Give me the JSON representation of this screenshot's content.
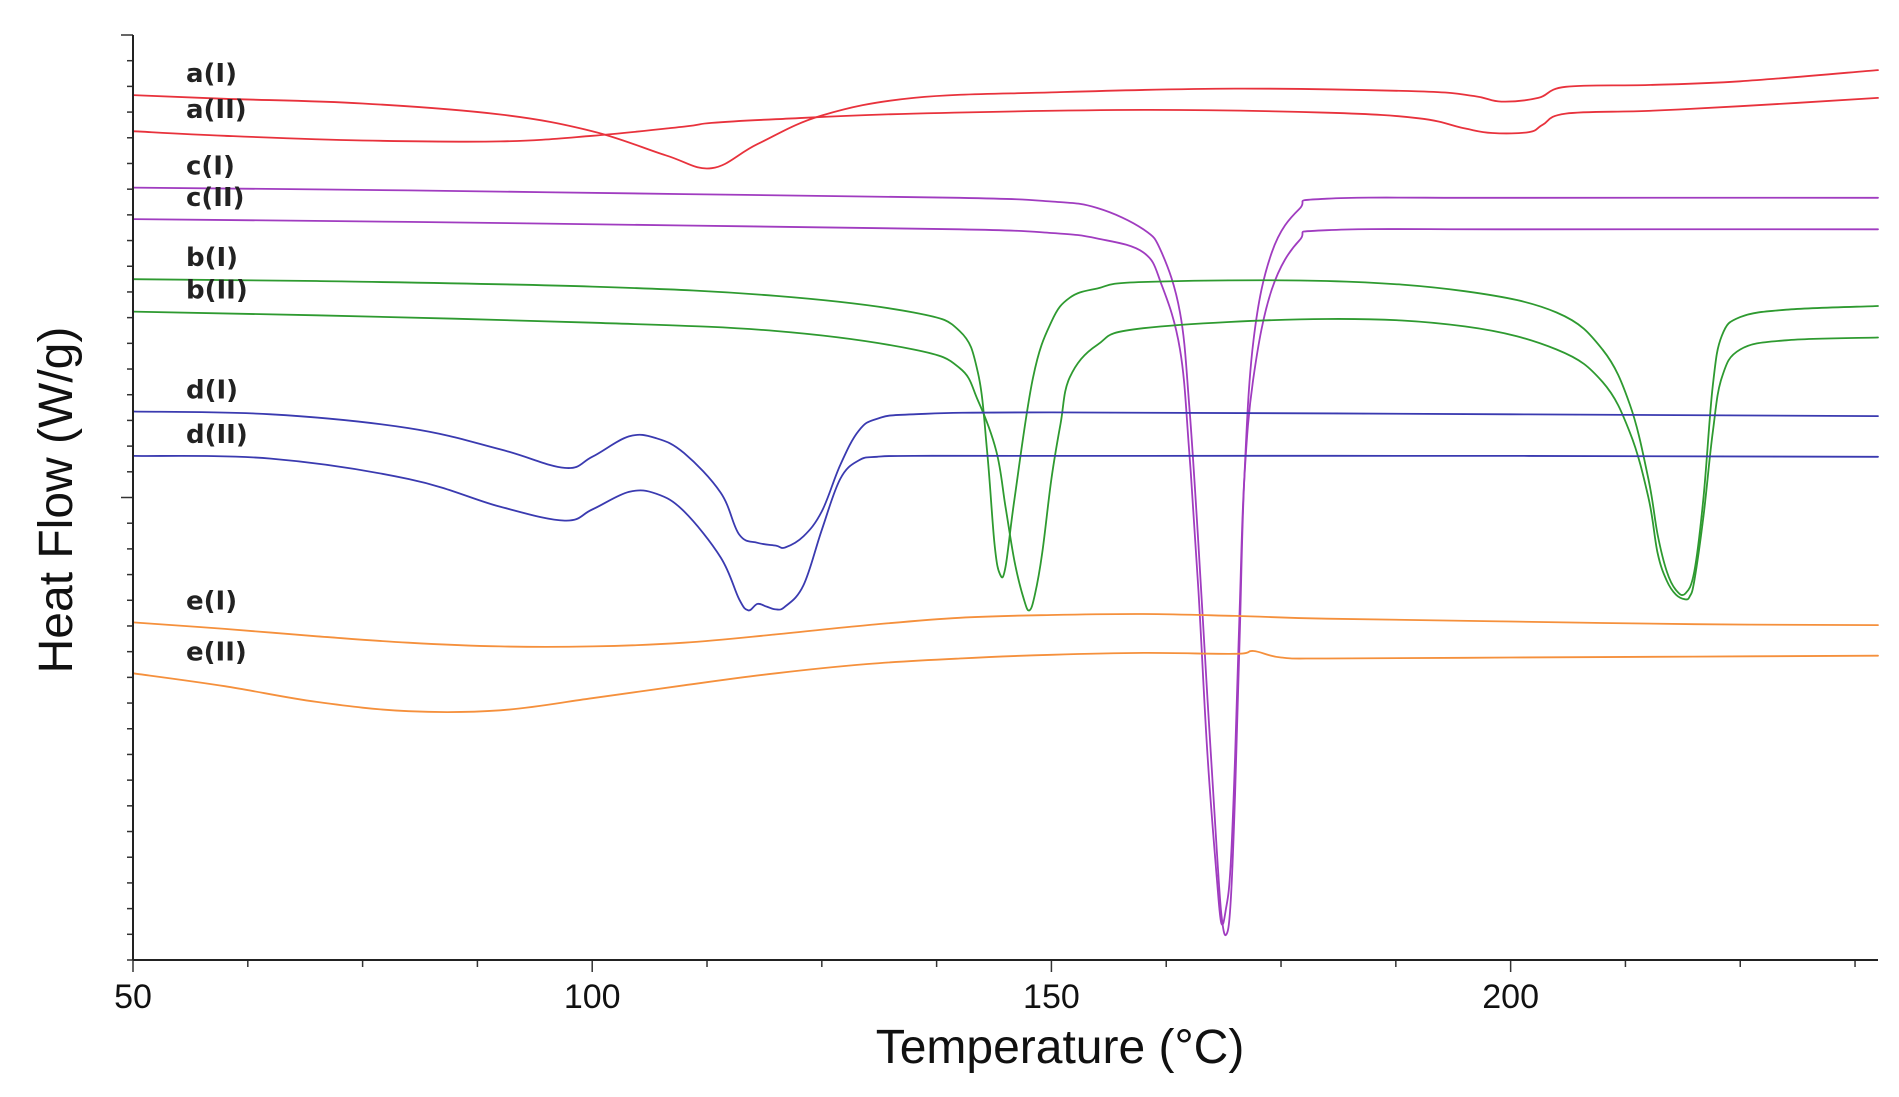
{
  "chart_data": {
    "type": "line",
    "title": "",
    "xlabel": "Temperature (°C)",
    "ylabel": "Heat Flow (W/g)",
    "xlim": [
      50,
      240
    ],
    "ylim": [
      0,
      100
    ],
    "xticks": [
      50,
      100,
      150,
      200
    ],
    "xtick_labels": [
      "50",
      "100",
      "150",
      "200"
    ],
    "yticks_major": [
      100,
      90,
      80,
      70,
      60,
      50,
      40,
      30,
      20,
      10
    ],
    "yticks_minor_count": 36,
    "grid": false,
    "series": [
      {
        "name": "a(I)",
        "label": "a(I)",
        "color": "#e8323c",
        "x": [
          50,
          60,
          75,
          90,
          100,
          108,
          113,
          118,
          125,
          135,
          150,
          170,
          190,
          196,
          199,
          203,
          206,
          215,
          225,
          240
        ],
        "y": [
          93.5,
          93.1,
          92.6,
          91.4,
          89.6,
          87.0,
          85.6,
          88.2,
          91.3,
          93.2,
          93.8,
          94.2,
          93.9,
          93.4,
          92.8,
          93.2,
          94.4,
          94.6,
          95.0,
          96.2
        ]
      },
      {
        "name": "a(II)",
        "label": "a(II)",
        "color": "#e8323c",
        "x": [
          50,
          60,
          75,
          90,
          100,
          110,
          113,
          120,
          135,
          160,
          180,
          190,
          195,
          198,
          202,
          203.5,
          206,
          215,
          225,
          240
        ],
        "y": [
          89.6,
          89.1,
          88.6,
          88.5,
          89.1,
          90.1,
          90.5,
          90.9,
          91.5,
          91.9,
          91.6,
          91.0,
          89.9,
          89.4,
          89.5,
          90.3,
          91.5,
          91.8,
          92.3,
          93.2
        ]
      },
      {
        "name": "c(I)",
        "label": "c(I)",
        "color": "#a03cc0",
        "x": [
          50,
          80,
          110,
          140,
          150,
          155,
          160,
          162,
          164,
          165,
          166,
          167,
          168,
          168.5,
          169,
          169.5,
          170,
          170.5,
          171,
          172,
          174,
          177,
          180,
          200,
          240
        ],
        "y": [
          83.5,
          83.2,
          82.8,
          82.4,
          82.0,
          81.3,
          79.0,
          76.5,
          70.0,
          60.0,
          45.0,
          28.0,
          12.0,
          5.0,
          2.7,
          6.0,
          18.0,
          35.0,
          52.0,
          67.0,
          76.5,
          81.2,
          82.3,
          82.4,
          82.4
        ]
      },
      {
        "name": "c(II)",
        "label": "c(II)",
        "color": "#a03cc0",
        "x": [
          50,
          80,
          110,
          140,
          150,
          155,
          160,
          162,
          164,
          165,
          166,
          167,
          168,
          168.5,
          169,
          169.5,
          170,
          170.5,
          171,
          172,
          174,
          177,
          180,
          200,
          240
        ],
        "y": [
          80.1,
          79.8,
          79.4,
          79.0,
          78.6,
          78.0,
          76.5,
          73.0,
          66.0,
          55.0,
          40.0,
          22.0,
          9.0,
          4.0,
          5.5,
          10.0,
          22.0,
          38.0,
          52.0,
          63.0,
          72.5,
          77.8,
          78.9,
          79.0,
          79.0
        ]
      },
      {
        "name": "b(I)",
        "label": "b(I)",
        "color": "#2e9a30",
        "x": [
          50,
          70,
          100,
          120,
          135,
          140,
          142,
          143,
          143.8,
          144.4,
          145,
          146,
          148,
          150,
          152,
          155,
          160,
          180,
          195,
          205,
          210,
          213,
          215,
          216,
          217,
          218,
          219,
          220,
          221,
          222,
          223,
          225,
          230,
          240
        ],
        "y": [
          73.6,
          73.4,
          72.8,
          71.8,
          70.0,
          68.0,
          63.5,
          55.0,
          45.0,
          41.7,
          42.5,
          50.0,
          63.0,
          69.0,
          71.6,
          72.6,
          73.3,
          73.4,
          72.3,
          70.0,
          66.0,
          60.0,
          52.0,
          46.0,
          42.0,
          40.0,
          39.6,
          42.0,
          50.0,
          62.0,
          67.5,
          69.5,
          70.3,
          70.7
        ]
      },
      {
        "name": "b(II)",
        "label": "b(II)",
        "color": "#2e9a30",
        "x": [
          50,
          70,
          100,
          120,
          135,
          140,
          142,
          144,
          145,
          146,
          147,
          147.6,
          148.2,
          149,
          150,
          151,
          152,
          155,
          160,
          180,
          195,
          205,
          210,
          213,
          215,
          216,
          217,
          218,
          219,
          219.5,
          220,
          221,
          222,
          223,
          225,
          230,
          240
        ],
        "y": [
          70.1,
          69.7,
          68.9,
          68.0,
          66.0,
          64.0,
          60.5,
          55.0,
          49.0,
          43.0,
          39.0,
          37.8,
          39.5,
          44.0,
          52.0,
          58.0,
          63.0,
          66.5,
          68.3,
          69.3,
          68.5,
          66.0,
          62.5,
          57.0,
          50.0,
          44.0,
          41.0,
          39.5,
          39.0,
          39.3,
          41.0,
          48.0,
          57.0,
          63.0,
          66.0,
          67.0,
          67.3
        ]
      },
      {
        "name": "d(I)",
        "label": "d(I)",
        "color": "#3a3ab0",
        "x": [
          50,
          65,
          80,
          90,
          97,
          100,
          104,
          107,
          110,
          114,
          116,
          118,
          120,
          121,
          123,
          125,
          127,
          129,
          131,
          135,
          150,
          200,
          240
        ],
        "y": [
          59.3,
          59.0,
          57.5,
          55.2,
          53.2,
          54.4,
          56.6,
          56.4,
          54.8,
          50.5,
          46.0,
          45.1,
          44.8,
          44.6,
          45.8,
          48.5,
          53.5,
          57.2,
          58.5,
          59.0,
          59.2,
          59.0,
          58.8
        ]
      },
      {
        "name": "d(II)",
        "label": "d(II)",
        "color": "#3a3ab0",
        "x": [
          50,
          65,
          80,
          90,
          97,
          100,
          104,
          107,
          110,
          114,
          116,
          117,
          118,
          119,
          120,
          121,
          123,
          125,
          127,
          129,
          131,
          135,
          150,
          200,
          240
        ],
        "y": [
          54.5,
          54.2,
          52.0,
          49.0,
          47.5,
          48.7,
          50.6,
          50.4,
          48.5,
          43.5,
          39.0,
          37.8,
          38.5,
          38.2,
          37.9,
          38.2,
          40.5,
          46.5,
          52.0,
          54.0,
          54.4,
          54.5,
          54.5,
          54.5,
          54.4
        ]
      },
      {
        "name": "e(I)",
        "label": "e(I)",
        "color": "#f5903c",
        "x": [
          50,
          60,
          70,
          80,
          90,
          100,
          110,
          120,
          130,
          140,
          150,
          160,
          170,
          180,
          200,
          220,
          240
        ],
        "y": [
          36.5,
          35.8,
          35.0,
          34.3,
          33.9,
          33.9,
          34.3,
          35.2,
          36.2,
          37.0,
          37.3,
          37.4,
          37.2,
          36.9,
          36.6,
          36.3,
          36.2
        ]
      },
      {
        "name": "e(II)",
        "label": "e(II)",
        "color": "#f5903c",
        "x": [
          50,
          60,
          70,
          80,
          90,
          100,
          110,
          120,
          130,
          140,
          150,
          160,
          170,
          172,
          175,
          180,
          200,
          220,
          240
        ],
        "y": [
          31.0,
          29.6,
          27.9,
          26.9,
          27.0,
          28.3,
          29.7,
          31.0,
          32.0,
          32.6,
          33.0,
          33.2,
          33.1,
          33.4,
          32.7,
          32.6,
          32.7,
          32.8,
          32.9
        ]
      }
    ]
  }
}
